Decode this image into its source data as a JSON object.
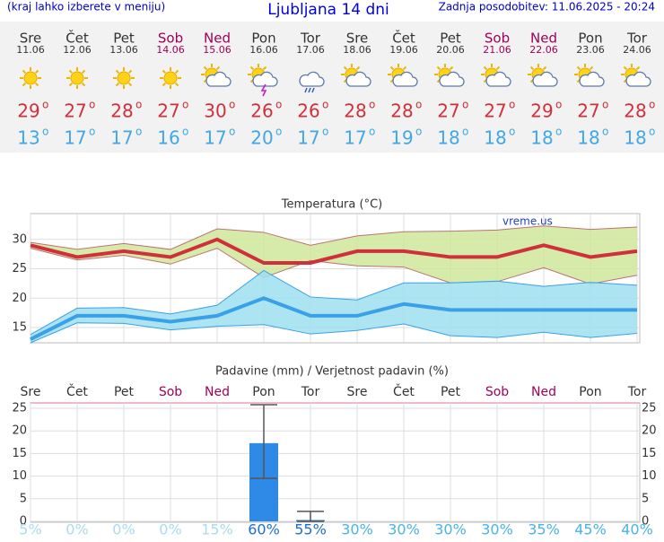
{
  "header": {
    "left": "(kraj lahko izberete v meniju)",
    "title": "Ljubljana 14 dni",
    "right": "Zadnja posodobitev: 11.06.2025 - 20:24"
  },
  "days": {
    "names": [
      "Sre",
      "Čet",
      "Pet",
      "Sob",
      "Ned",
      "Pon",
      "Tor",
      "Sre",
      "Čet",
      "Pet",
      "Sob",
      "Ned",
      "Pon",
      "Tor"
    ],
    "dates": [
      "11.06",
      "12.06",
      "13.06",
      "14.06",
      "15.06",
      "16.06",
      "17.06",
      "18.06",
      "19.06",
      "20.06",
      "21.06",
      "22.06",
      "23.06",
      "24.06"
    ],
    "weekend": [
      false,
      false,
      false,
      true,
      true,
      false,
      false,
      false,
      false,
      false,
      true,
      true,
      false,
      false
    ],
    "icons": [
      "sun",
      "sun",
      "sun",
      "sun",
      "partly",
      "storm",
      "rain",
      "partly",
      "partly",
      "partly",
      "partly",
      "partly",
      "partly",
      "partly"
    ],
    "high": [
      29,
      27,
      28,
      27,
      30,
      26,
      26,
      28,
      28,
      27,
      27,
      29,
      27,
      28
    ],
    "low": [
      13,
      17,
      17,
      16,
      17,
      20,
      17,
      17,
      19,
      18,
      18,
      18,
      18,
      18
    ],
    "degree": "o",
    "high_color": "#d0303c",
    "low_color": "#40a8e8",
    "weekend_color": "#a0005a"
  },
  "chart_data": [
    {
      "type": "line",
      "title": "Temperatura (°C)",
      "annotation": "vreme.us",
      "ylim": [
        12.4,
        34.4
      ],
      "yticks": [
        15,
        20,
        25,
        30
      ],
      "series": [
        {
          "color": "#d0303c",
          "band_color": "#cfe89a",
          "band_line": "#c07070",
          "values": [
            29,
            27,
            28,
            27,
            30,
            26,
            26,
            28,
            28,
            27,
            27,
            29,
            27,
            28
          ],
          "band_high": [
            29.5,
            28.3,
            29.3,
            28.3,
            31.8,
            31.2,
            29.0,
            30.6,
            31.3,
            31.4,
            31.6,
            32.3,
            31.7,
            32.1
          ],
          "band_low": [
            28.5,
            26.5,
            27.3,
            25.8,
            28.5,
            23.5,
            26.4,
            25.5,
            25.3,
            22.6,
            22.8,
            25.2,
            22.4,
            23.9
          ]
        },
        {
          "color": "#3aa0e8",
          "band_color": "#9ee0ee",
          "band_line": "#3aa0e8",
          "values": [
            13,
            17,
            17,
            16,
            17,
            20,
            17,
            17,
            19,
            18,
            18,
            18,
            18,
            18
          ],
          "band_high": [
            13.8,
            18.3,
            18.4,
            17.3,
            18.8,
            24.7,
            20.2,
            19.7,
            22.6,
            22.6,
            22.9,
            22.0,
            22.7,
            22.2
          ],
          "band_low": [
            12.4,
            15.8,
            15.7,
            14.6,
            15.2,
            15.5,
            13.9,
            14.5,
            15.6,
            13.6,
            13.3,
            14.2,
            13.3,
            14.0
          ]
        }
      ]
    },
    {
      "type": "bar",
      "title": "Padavine (mm) / Verjetnost padavin (%)",
      "categories": [
        "Sre",
        "Čet",
        "Pet",
        "Sob",
        "Ned",
        "Pon",
        "Tor",
        "Sre",
        "Čet",
        "Pet",
        "Sob",
        "Ned",
        "Pon",
        "Tor"
      ],
      "ylim": [
        -0.2,
        26.2
      ],
      "yticks": [
        0,
        5,
        10,
        15,
        20,
        25
      ],
      "color": "#2e8ae6",
      "values": [
        0,
        0,
        0,
        0,
        0,
        17.3,
        0.3,
        0,
        0,
        0,
        0,
        0,
        0,
        0
      ],
      "error_low": [
        null,
        null,
        null,
        null,
        null,
        9.5,
        0,
        null,
        null,
        null,
        null,
        null,
        null,
        null
      ],
      "error_high": [
        null,
        null,
        null,
        null,
        null,
        25.8,
        2.2,
        null,
        null,
        null,
        null,
        null,
        null,
        null
      ],
      "probability": [
        5,
        0,
        0,
        0,
        15,
        60,
        55,
        30,
        30,
        30,
        30,
        35,
        45,
        40
      ],
      "probability_labels": [
        "5%",
        "0%",
        "0%",
        "0%",
        "15%",
        "60%",
        "55%",
        "30%",
        "30%",
        "30%",
        "30%",
        "35%",
        "45%",
        "40%"
      ],
      "probability_colors": [
        "#a8dcf0",
        "#a8dcf0",
        "#a8dcf0",
        "#a8dcf0",
        "#a8dcf0",
        "#1e6fd0",
        "#1e6fd0",
        "#48b4e8",
        "#48b4e8",
        "#48b4e8",
        "#48b4e8",
        "#48b4e8",
        "#48b4e8",
        "#48b4e8"
      ]
    }
  ]
}
